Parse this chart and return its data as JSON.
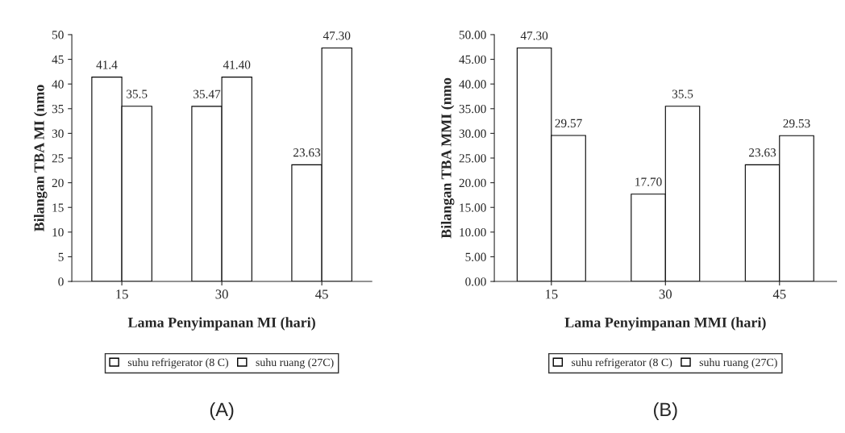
{
  "chart_data": [
    {
      "type": "bar",
      "xlabel": "Lama Penyimpanan MI (hari)",
      "ylabel": "Bilangan TBA MI (nmo",
      "categories": [
        "15",
        "30",
        "45"
      ],
      "series": [
        {
          "name": "suhu refrigerator (8 C)",
          "color": "#ffffff",
          "values": [
            41.4,
            35.47,
            23.63
          ],
          "value_labels": [
            "41.4",
            "35.47",
            "23.63"
          ]
        },
        {
          "name": "suhu ruang (27C)",
          "color": "#ffffff",
          "values": [
            35.5,
            41.4,
            47.3
          ],
          "value_labels": [
            "35.5",
            "41.40",
            "47.30"
          ]
        }
      ],
      "ylim": [
        0,
        50
      ],
      "yticks": [
        0,
        5,
        10,
        15,
        20,
        25,
        30,
        35,
        40,
        45,
        50
      ],
      "grid": false,
      "legend": "bottom",
      "annotations": [
        "(A)"
      ]
    },
    {
      "type": "bar",
      "xlabel": "Lama Penyimpanan MMI (hari)",
      "ylabel": "Bilangan TBA MMI (nmo",
      "categories": [
        "15",
        "30",
        "45"
      ],
      "series": [
        {
          "name": "suhu refrigerator (8 C)",
          "color": "#ffffff",
          "values": [
            47.3,
            17.7,
            23.63
          ],
          "value_labels": [
            "47.30",
            "17.70",
            "23.63"
          ]
        },
        {
          "name": "suhu ruang (27C)",
          "color": "#ffffff",
          "values": [
            29.57,
            35.5,
            29.53
          ],
          "value_labels": [
            "29.57",
            "35.5",
            "29.53"
          ]
        }
      ],
      "ylim": [
        0,
        50
      ],
      "yticks": [
        {
          "value": 0,
          "label": "0.00"
        },
        {
          "value": 5,
          "label": "5.00"
        },
        {
          "value": 10,
          "label": "10.00"
        },
        {
          "value": 15,
          "label": "15.00"
        },
        {
          "value": 20,
          "label": "20.00"
        },
        {
          "value": 25,
          "label": "25.00"
        },
        {
          "value": 30,
          "label": "30.00"
        },
        {
          "value": 35,
          "label": "35.00"
        },
        {
          "value": 40,
          "label": "40.00"
        },
        {
          "value": 45,
          "label": "45.00"
        },
        {
          "value": 50,
          "label": "50.00"
        }
      ],
      "grid": false,
      "legend": "bottom",
      "annotations": [
        "(B)"
      ]
    }
  ]
}
